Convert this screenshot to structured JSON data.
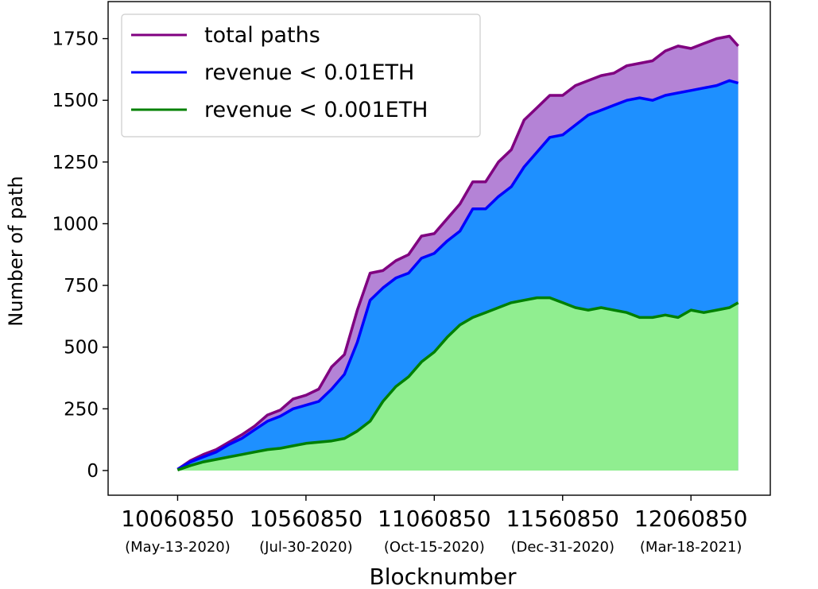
{
  "chart_data": {
    "type": "area",
    "xlabel": "Blocknumber",
    "ylabel": "Number of path",
    "xlim": [
      9790000,
      12370000
    ],
    "ylim": [
      -100,
      1900
    ],
    "x_ticks": [
      {
        "value": 10060850,
        "label": "10060850",
        "date": "(May-13-2020)"
      },
      {
        "value": 10560850,
        "label": "10560850",
        "date": "(Jul-30-2020)"
      },
      {
        "value": 11060850,
        "label": "11060850",
        "date": "(Oct-15-2020)"
      },
      {
        "value": 11560850,
        "label": "11560850",
        "date": "(Dec-31-2020)"
      },
      {
        "value": 12060850,
        "label": "12060850",
        "date": "(Mar-18-2021)"
      }
    ],
    "y_ticks": [
      0,
      250,
      500,
      750,
      1000,
      1250,
      1500,
      1750
    ],
    "legend_position": "top-left",
    "series": [
      {
        "name": "total paths",
        "color": "#800080",
        "fill": "#9b59c8",
        "x": [
          10060850,
          10110850,
          10160850,
          10210850,
          10260850,
          10310850,
          10360850,
          10410850,
          10460850,
          10510850,
          10560850,
          10610850,
          10660850,
          10710850,
          10760850,
          10810850,
          10860850,
          10910850,
          10960850,
          11010850,
          11060850,
          11110850,
          11160850,
          11210850,
          11260850,
          11310850,
          11360850,
          11410850,
          11460850,
          11510850,
          11560850,
          11610850,
          11660850,
          11710850,
          11760850,
          11810850,
          11860850,
          11910850,
          11960850,
          12010850,
          12060850,
          12110850,
          12160850,
          12210850,
          12245000
        ],
        "y": [
          5,
          40,
          65,
          85,
          115,
          145,
          180,
          225,
          245,
          290,
          305,
          330,
          420,
          470,
          650,
          800,
          810,
          850,
          875,
          950,
          960,
          1020,
          1080,
          1170,
          1170,
          1250,
          1300,
          1420,
          1470,
          1520,
          1520,
          1560,
          1580,
          1600,
          1610,
          1640,
          1650,
          1660,
          1700,
          1720,
          1710,
          1730,
          1750,
          1760,
          1720
        ]
      },
      {
        "name": "revenue < 0.01ETH",
        "color": "#0000ff",
        "fill": "#1e90ff",
        "x": [
          10060850,
          10110850,
          10160850,
          10210850,
          10260850,
          10310850,
          10360850,
          10410850,
          10460850,
          10510850,
          10560850,
          10610850,
          10660850,
          10710850,
          10760850,
          10810850,
          10860850,
          10910850,
          10960850,
          11010850,
          11060850,
          11110850,
          11160850,
          11210850,
          11260850,
          11310850,
          11360850,
          11410850,
          11460850,
          11510850,
          11560850,
          11610850,
          11660850,
          11710850,
          11760850,
          11810850,
          11860850,
          11910850,
          11960850,
          12010850,
          12060850,
          12110850,
          12160850,
          12210850,
          12245000
        ],
        "y": [
          5,
          35,
          55,
          75,
          105,
          130,
          165,
          200,
          220,
          250,
          265,
          280,
          330,
          390,
          520,
          690,
          740,
          780,
          800,
          860,
          880,
          930,
          970,
          1060,
          1060,
          1110,
          1150,
          1230,
          1290,
          1350,
          1360,
          1400,
          1440,
          1460,
          1480,
          1500,
          1510,
          1500,
          1520,
          1530,
          1540,
          1550,
          1560,
          1580,
          1570
        ]
      },
      {
        "name": "revenue < 0.001ETH",
        "color": "#008000",
        "fill": "#90ee90",
        "x": [
          10060850,
          10110850,
          10160850,
          10210850,
          10260850,
          10310850,
          10360850,
          10410850,
          10460850,
          10510850,
          10560850,
          10610850,
          10660850,
          10710850,
          10760850,
          10810850,
          10860850,
          10910850,
          10960850,
          11010850,
          11060850,
          11110850,
          11160850,
          11210850,
          11260850,
          11310850,
          11360850,
          11410850,
          11460850,
          11510850,
          11560850,
          11610850,
          11660850,
          11710850,
          11760850,
          11810850,
          11860850,
          11910850,
          11960850,
          12010850,
          12060850,
          12110850,
          12160850,
          12210850,
          12245000
        ],
        "y": [
          2,
          20,
          35,
          45,
          55,
          65,
          75,
          85,
          90,
          100,
          110,
          115,
          120,
          130,
          160,
          200,
          280,
          340,
          380,
          440,
          480,
          540,
          590,
          620,
          640,
          660,
          680,
          690,
          700,
          700,
          680,
          660,
          650,
          660,
          650,
          640,
          620,
          620,
          630,
          620,
          650,
          640,
          650,
          660,
          680
        ]
      }
    ]
  }
}
